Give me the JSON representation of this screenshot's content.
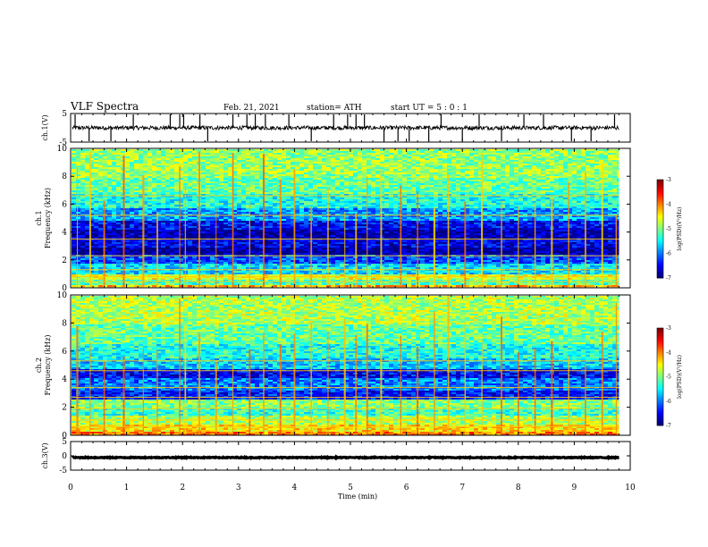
{
  "header": {
    "title": "VLF Spectra",
    "date": "Feb. 21, 2021",
    "station": "station= ATH",
    "start": "start UT =  5 : 0 : 1"
  },
  "chart_data": [
    {
      "type": "line",
      "name": "ch1-waveform",
      "ylabel": "ch.1(V)",
      "ylim": [
        -5,
        5
      ],
      "yticks": [
        "5",
        "-5"
      ],
      "xlim": [
        0,
        10
      ],
      "baseline": 0,
      "noise_amplitude": 0.7,
      "spikes_min": [
        0.08,
        0.33,
        0.72,
        1.12,
        1.78,
        1.95,
        2.02,
        2.31,
        2.45,
        2.9,
        3.15,
        3.3,
        3.48,
        3.9,
        4.3,
        4.7,
        4.95,
        5.1,
        5.25,
        5.6,
        5.85,
        6.05,
        6.4,
        6.62,
        7.0,
        7.3,
        7.7,
        8.1,
        8.45,
        8.95,
        9.3,
        9.72
      ],
      "data_end_min": 9.8
    },
    {
      "type": "heatmap",
      "name": "ch1-spectrogram",
      "ylabel": "ch.1 Frequency (kHz)",
      "ylim": [
        0,
        10
      ],
      "yticks": [
        "0",
        "2",
        "4",
        "6",
        "8",
        "10"
      ],
      "xlim": [
        0,
        9.8
      ],
      "z_label": "log(PSD)(V²/Hz)",
      "zlim": [
        -7,
        -3
      ],
      "zticks": [
        "-3",
        "-4",
        "-5",
        "-6",
        "-7"
      ],
      "bands": [
        {
          "f": [
            0.0,
            0.3
          ],
          "level": -4.2
        },
        {
          "f": [
            0.3,
            0.6
          ],
          "level": -5.2
        },
        {
          "f": [
            0.6,
            1.0
          ],
          "level": -4.6
        },
        {
          "f": [
            1.0,
            1.8
          ],
          "level": -5.6
        },
        {
          "f": [
            1.8,
            2.4
          ],
          "level": -6.2
        },
        {
          "f": [
            2.4,
            2.9
          ],
          "level": -6.9
        },
        {
          "f": [
            2.9,
            3.6
          ],
          "level": -6.6
        },
        {
          "f": [
            3.6,
            4.2
          ],
          "level": -6.8
        },
        {
          "f": [
            4.2,
            4.9
          ],
          "level": -6.5
        },
        {
          "f": [
            4.9,
            5.8
          ],
          "level": -5.9
        },
        {
          "f": [
            5.8,
            6.8
          ],
          "level": -5.4
        },
        {
          "f": [
            6.8,
            8.0
          ],
          "level": -5.1
        },
        {
          "f": [
            8.0,
            10.0
          ],
          "level": -4.9
        }
      ],
      "lines_khz": [
        0.45,
        0.8,
        1.3,
        2.3,
        3.5,
        5.2,
        6.6
      ],
      "sferic_min": [
        0.12,
        0.35,
        0.6,
        0.95,
        1.3,
        1.55,
        1.95,
        2.05,
        2.3,
        2.6,
        2.9,
        3.2,
        3.45,
        3.75,
        4.0,
        4.3,
        4.6,
        4.9,
        5.1,
        5.3,
        5.55,
        5.9,
        6.2,
        6.5,
        6.75,
        7.05,
        7.35,
        7.7,
        8.0,
        8.3,
        8.6,
        8.9,
        9.2,
        9.5,
        9.75
      ]
    },
    {
      "type": "heatmap",
      "name": "ch2-spectrogram",
      "ylabel": "ch.2 Frequency (kHz)",
      "ylim": [
        0,
        10
      ],
      "yticks": [
        "0",
        "2",
        "4",
        "6",
        "8",
        "10"
      ],
      "xlim": [
        0,
        9.8
      ],
      "z_label": "log(PSD)(V²/Hz)",
      "zlim": [
        -7,
        -3
      ],
      "zticks": [
        "-3",
        "-4",
        "-5",
        "-6",
        "-7"
      ],
      "bands": [
        {
          "f": [
            0.0,
            0.3
          ],
          "level": -4.0
        },
        {
          "f": [
            0.3,
            0.8
          ],
          "level": -4.4
        },
        {
          "f": [
            0.8,
            1.5
          ],
          "level": -4.8
        },
        {
          "f": [
            1.5,
            2.0
          ],
          "level": -5.3
        },
        {
          "f": [
            2.0,
            2.6
          ],
          "level": -5.0
        },
        {
          "f": [
            2.6,
            3.2
          ],
          "level": -6.4
        },
        {
          "f": [
            3.2,
            4.2
          ],
          "level": -6.0
        },
        {
          "f": [
            4.2,
            4.8
          ],
          "level": -6.5
        },
        {
          "f": [
            4.8,
            5.6
          ],
          "level": -5.7
        },
        {
          "f": [
            5.6,
            6.6
          ],
          "level": -5.4
        },
        {
          "f": [
            6.6,
            8.0
          ],
          "level": -5.1
        },
        {
          "f": [
            8.0,
            10.0
          ],
          "level": -4.8
        }
      ],
      "lines_khz": [
        0.6,
        1.1,
        1.9,
        2.7,
        3.4,
        4.6,
        5.3
      ],
      "sferic_min": [
        0.12,
        0.35,
        0.6,
        0.95,
        1.3,
        1.55,
        1.95,
        2.05,
        2.3,
        2.6,
        2.9,
        3.2,
        3.45,
        3.75,
        4.0,
        4.3,
        4.6,
        4.9,
        5.1,
        5.3,
        5.55,
        5.9,
        6.2,
        6.5,
        6.75,
        7.05,
        7.35,
        7.7,
        8.0,
        8.3,
        8.6,
        8.9,
        9.2,
        9.5,
        9.75
      ]
    },
    {
      "type": "line",
      "name": "ch3-waveform",
      "ylabel": "ch.3(V)",
      "ylim": [
        -5,
        5
      ],
      "yticks": [
        "5",
        "0",
        "-5"
      ],
      "xlim": [
        0,
        10
      ],
      "baseline": -0.6,
      "noise_amplitude": 0.15,
      "data_end_min": 9.8
    }
  ],
  "x_axis": {
    "label": "Time (min)",
    "range": [
      0,
      10
    ],
    "ticks": [
      "0",
      "1",
      "2",
      "3",
      "4",
      "5",
      "6",
      "7",
      "8",
      "9",
      "10"
    ]
  }
}
